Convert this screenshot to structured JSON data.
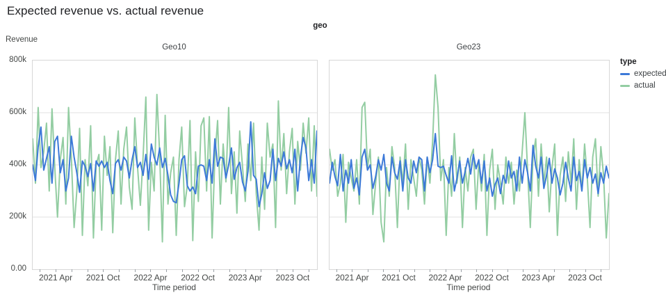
{
  "title": "Expected revenue vs. actual revenue",
  "facet_header": "geo",
  "y_axis": {
    "title": "Revenue",
    "ticks": [
      "800k",
      "600k",
      "400k",
      "200k",
      "0.00"
    ]
  },
  "x_axis": {
    "title": "Time period",
    "ticks": [
      "2021 Apr",
      "2021 Oct",
      "2022 Apr",
      "2022 Oct",
      "2023 Apr",
      "2023 Oct"
    ]
  },
  "legend": {
    "title": "type",
    "items": [
      {
        "label": "expected",
        "color": "#3c79d8"
      },
      {
        "label": "actual",
        "color": "#93cda2"
      }
    ]
  },
  "colors": {
    "grid": "#e2e2e2",
    "panel_border": "#d7d7d7",
    "expected": "#3c79d8",
    "actual": "#93cda2"
  },
  "chart_data": {
    "type": "line",
    "title": "Expected revenue vs. actual revenue",
    "facet_field": "geo",
    "x": {
      "label": "Time period",
      "domain": [
        "2021-01",
        "2024-01"
      ],
      "tick_labels": [
        "2021 Apr",
        "2021 Oct",
        "2022 Apr",
        "2022 Oct",
        "2023 Apr",
        "2023 Oct"
      ],
      "minor_ticks": "every 2 months",
      "points_cadence": "approx. every 10-11 days"
    },
    "y": {
      "label": "Revenue",
      "domain": [
        0,
        800000
      ],
      "tick_labels": [
        "0.00",
        "200k",
        "400k",
        "600k",
        "800k"
      ],
      "grid": true
    },
    "legend_position": "right",
    "values_unit": "thousands (k)",
    "facets": [
      {
        "name": "Geo10",
        "series": [
          {
            "name": "expected",
            "color": "#3c79d8",
            "values": [
              400,
              340,
              470,
              545,
              380,
              425,
              470,
              330,
              490,
              510,
              370,
              420,
              300,
              350,
              510,
              430,
              370,
              295,
              415,
              395,
              355,
              405,
              300,
              415,
              395,
              415,
              390,
              410,
              340,
              290,
              405,
              420,
              380,
              430,
              415,
              350,
              420,
              470,
              390,
              410,
              360,
              440,
              345,
              480,
              430,
              400,
              465,
              390,
              425,
              360,
              285,
              260,
              255,
              330,
              420,
              435,
              320,
              300,
              315,
              290,
              395,
              400,
              395,
              340,
              420,
              330,
              500,
              395,
              430,
              425,
              350,
              400,
              465,
              345,
              390,
              410,
              335,
              300,
              375,
              565,
              360,
              345,
              240,
              290,
              370,
              310,
              340,
              460,
              340,
              425,
              395,
              450,
              385,
              420,
              370,
              460,
              300,
              430,
              505,
              465,
              340,
              420,
              330,
              530
            ]
          },
          {
            "name": "actual",
            "color": "#93cda2",
            "values": [
              500,
              330,
              620,
              390,
              450,
              560,
              300,
              615,
              390,
              200,
              420,
              505,
              250,
              620,
              430,
              160,
              300,
              540,
              130,
              420,
              320,
              550,
              120,
              400,
              440,
              150,
              510,
              360,
              470,
              140,
              420,
              530,
              250,
              460,
              545,
              315,
              230,
              580,
              390,
              245,
              430,
              660,
              150,
              410,
              300,
              670,
              440,
              105,
              590,
              250,
              370,
              430,
              130,
              420,
              545,
              240,
              320,
              570,
              110,
              450,
              260,
              550,
              580,
              300,
              585,
              120,
              430,
              570,
              250,
              480,
              335,
              620,
              290,
              450,
              215,
              530,
              395,
              260,
              480,
              340,
              560,
              290,
              150,
              430,
              230,
              560,
              430,
              480,
              160,
              645,
              380,
              520,
              290,
              450,
              540,
              250,
              490,
              380,
              560,
              445,
              580,
              300,
              550,
              280
            ]
          }
        ]
      },
      {
        "name": "Geo23",
        "series": [
          {
            "name": "expected",
            "color": "#3c79d8",
            "values": [
              330,
              410,
              355,
              320,
              440,
              300,
              380,
              330,
              420,
              310,
              350,
              285,
              430,
              460,
              380,
              400,
              310,
              355,
              420,
              380,
              440,
              330,
              300,
              430,
              370,
              345,
              415,
              300,
              420,
              350,
              330,
              415,
              370,
              430,
              420,
              300,
              430,
              370,
              420,
              520,
              395,
              390,
              395,
              360,
              330,
              435,
              300,
              350,
              415,
              330,
              375,
              425,
              365,
              440,
              385,
              420,
              330,
              415,
              300,
              350,
              280,
              325,
              350,
              290,
              360,
              330,
              415,
              350,
              375,
              300,
              430,
              330,
              420,
              370,
              300,
              475,
              395,
              350,
              430,
              310,
              360,
              425,
              330,
              385,
              350,
              285,
              330,
              410,
              350,
              300,
              430,
              340,
              375,
              300,
              420,
              350,
              390,
              330,
              365,
              290,
              370,
              330,
              395,
              350
            ]
          },
          {
            "name": "actual",
            "color": "#93cda2",
            "values": [
              460,
              380,
              420,
              280,
              330,
              440,
              180,
              410,
              350,
              300,
              420,
              250,
              620,
              640,
              390,
              460,
              210,
              330,
              430,
              180,
              105,
              390,
              280,
              470,
              390,
              160,
              430,
              330,
              480,
              230,
              420,
              350,
              280,
              430,
              380,
              250,
              430,
              330,
              490,
              745,
              620,
              340,
              420,
              130,
              390,
              280,
              520,
              330,
              430,
              160,
              390,
              300,
              430,
              460,
              230,
              410,
              300,
              440,
              130,
              380,
              460,
              230,
              400,
              330,
              250,
              430,
              330,
              410,
              250,
              380,
              300,
              450,
              600,
              380,
              160,
              430,
              500,
              280,
              480,
              330,
              430,
              220,
              390,
              480,
              130,
              360,
              430,
              260,
              450,
              330,
              500,
              230,
              420,
              300,
              480,
              350,
              160,
              430,
              500,
              280,
              470,
              360,
              120,
              290
            ]
          }
        ]
      }
    ]
  }
}
